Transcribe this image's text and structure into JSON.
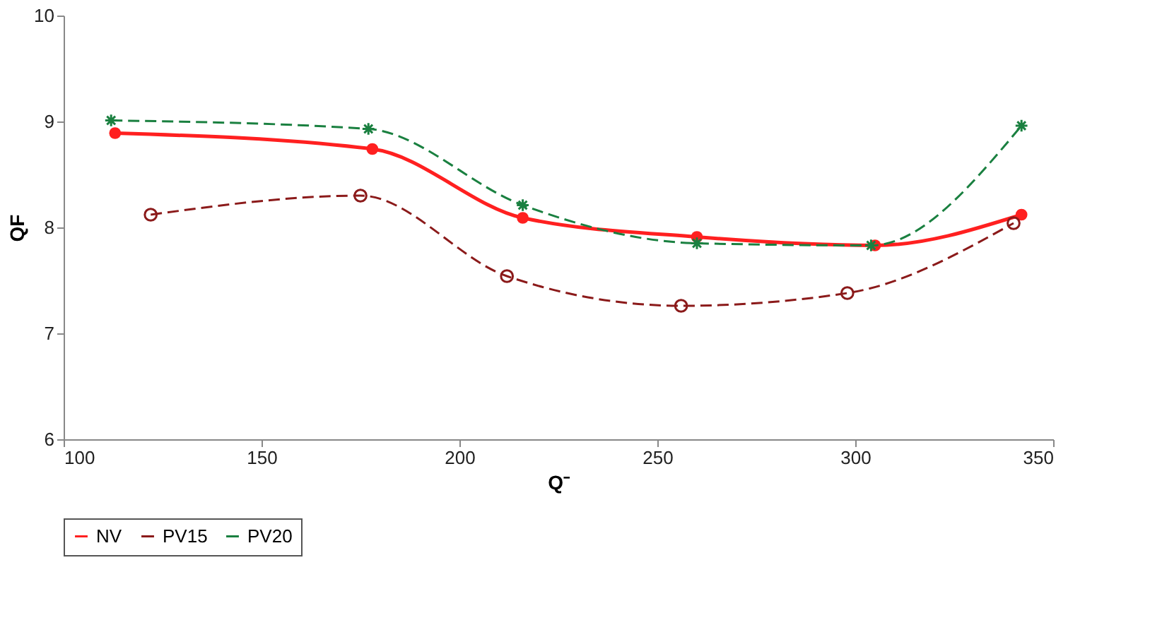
{
  "chart_data": {
    "type": "line",
    "xlabel": "Q⁻",
    "ylabel": "QF",
    "xlim": [
      100,
      350
    ],
    "xticks": [
      100,
      150,
      200,
      250,
      300,
      350
    ],
    "ylim": [
      6,
      10
    ],
    "yticks": [
      6,
      7,
      8,
      9,
      10
    ],
    "grid": false,
    "legend": "bottom",
    "series": [
      {
        "name": "NV",
        "color": "#ff2020",
        "marker": "circle",
        "line_style": "solid",
        "x": [
          113,
          178,
          216,
          260,
          305,
          342
        ],
        "values": [
          8.89,
          8.74,
          8.09,
          7.91,
          7.83,
          8.12
        ]
      },
      {
        "name": "PV15",
        "color": "#8b1a1a",
        "marker": "circle",
        "line_style": "dashed",
        "x": [
          122,
          175,
          212,
          256,
          298,
          340
        ],
        "values": [
          8.12,
          8.3,
          7.54,
          7.26,
          7.38,
          8.04
        ]
      },
      {
        "name": "PV20",
        "color": "#1a8040",
        "marker": "cross",
        "line_style": "dashed",
        "x": [
          112,
          177,
          216,
          260,
          304,
          342
        ],
        "values": [
          9.01,
          8.93,
          8.21,
          7.85,
          7.83,
          8.96
        ]
      }
    ]
  }
}
